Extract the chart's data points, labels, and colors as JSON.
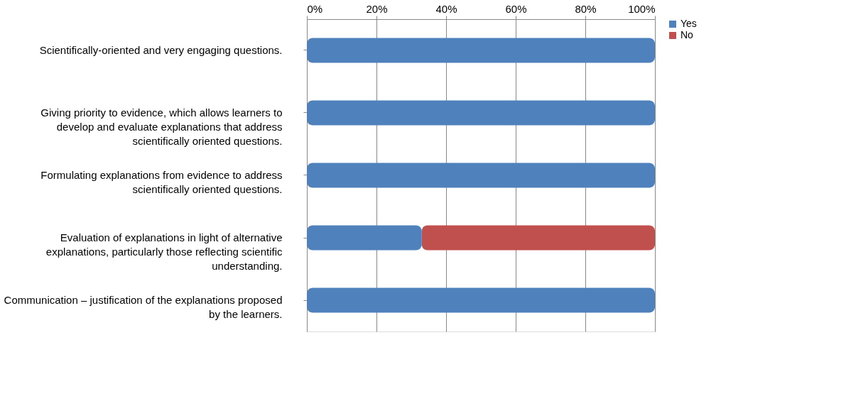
{
  "chart_data": {
    "type": "bar",
    "orientation": "horizontal",
    "stacked": true,
    "categories": [
      "Scientifically-oriented and very engaging questions.",
      "Giving priority to evidence, which allows learners to develop and evaluate explanations that address scientifically oriented questions.",
      "Formulating explanations from evidence to address scientifically oriented questions.",
      "Evaluation of explanations in light of alternative explanations, particularly those reflecting scientific understanding.",
      "Communication – justification of the explanations proposed by the learners."
    ],
    "series": [
      {
        "name": "Yes",
        "color": "#4f81bd",
        "values": [
          100,
          100,
          100,
          33,
          100
        ]
      },
      {
        "name": "No",
        "color": "#c0504d",
        "values": [
          0,
          0,
          0,
          67,
          0
        ]
      }
    ],
    "xlim": [
      0,
      100
    ],
    "xticks": [
      {
        "value": 0,
        "label": "0%"
      },
      {
        "value": 20,
        "label": "20%"
      },
      {
        "value": 40,
        "label": "40%"
      },
      {
        "value": 60,
        "label": "60%"
      },
      {
        "value": 80,
        "label": "80%"
      },
      {
        "value": 100,
        "label": "100%"
      }
    ],
    "grid": true,
    "legend": "right"
  }
}
